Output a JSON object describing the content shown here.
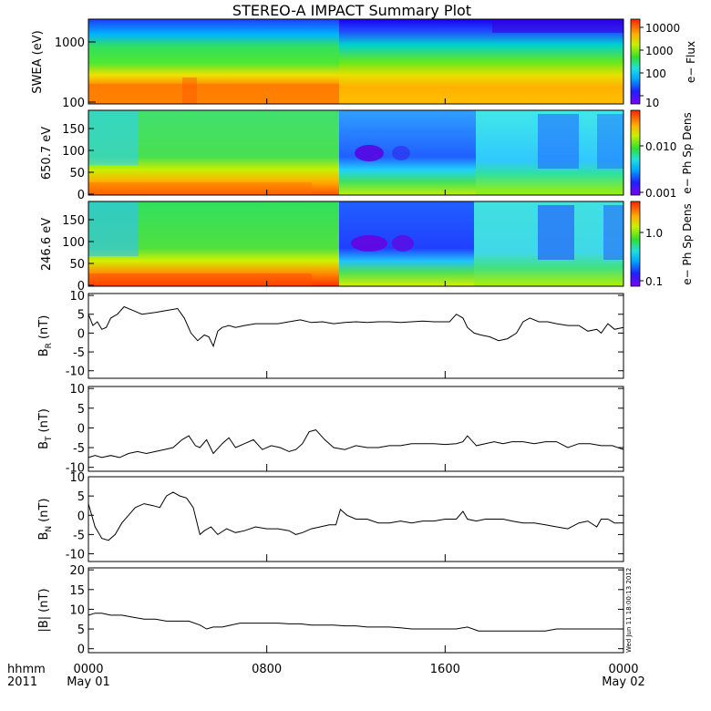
{
  "title": "STEREO-A IMPACT Summary Plot",
  "stamp": "Wed Jun 11 18:00:13 2012",
  "x_axis": {
    "corner_top": "hhmm",
    "corner_bottom": "2011",
    "ticks": [
      {
        "hhmm": "0000",
        "date": "May 01",
        "hours": 0
      },
      {
        "hhmm": "0800",
        "date": "",
        "hours": 8
      },
      {
        "hhmm": "1600",
        "date": "",
        "hours": 16
      },
      {
        "hhmm": "0000",
        "date": "May 02",
        "hours": 24
      }
    ],
    "range_hours": [
      0,
      24
    ]
  },
  "colors": {
    "background": "#ffffff",
    "line": "#000000"
  },
  "chart_data": [
    {
      "type": "heatmap",
      "ylabel": "SWEA (eV)",
      "yscale": "log",
      "ylim": [
        90,
        2000
      ],
      "yticks": [
        "1000",
        "100"
      ],
      "colorbar": {
        "label": "e− Flux",
        "scale": "log",
        "ticks": [
          "10000",
          "1000",
          "100",
          "10"
        ],
        "range": [
          5,
          20000
        ]
      }
    },
    {
      "type": "heatmap",
      "ylabel": "650.7 eV",
      "ylim": [
        -10,
        180
      ],
      "yticks": [
        "150",
        "100",
        "50",
        "0"
      ],
      "colorbar": {
        "label": "e− Ph Sp Dens",
        "scale": "log",
        "ticks": [
          "0.010",
          "0.001"
        ],
        "range": [
          0.0008,
          0.06
        ]
      }
    },
    {
      "type": "heatmap",
      "ylabel": "246.6 eV",
      "ylim": [
        -10,
        180
      ],
      "yticks": [
        "150",
        "100",
        "50",
        "0"
      ],
      "colorbar": {
        "label": "e− Ph Sp Dens",
        "scale": "log",
        "ticks": [
          "1.0",
          "0.1"
        ],
        "range": [
          0.07,
          5
        ]
      }
    },
    {
      "type": "line",
      "ylabel": "B",
      "ylabel_sub": "R",
      "ylabel_unit": "(nT)",
      "ylim": [
        -12,
        10.5
      ],
      "yticks": [
        "10",
        "5",
        "0",
        "-5",
        "-10"
      ],
      "x": [
        0,
        0.2,
        0.4,
        0.6,
        0.8,
        1.0,
        1.3,
        1.6,
        2.0,
        2.4,
        3.0,
        3.5,
        4.0,
        4.3,
        4.6,
        4.9,
        5.0,
        5.2,
        5.4,
        5.6,
        5.8,
        6.0,
        6.3,
        6.6,
        7.0,
        7.5,
        8.0,
        8.5,
        9.0,
        9.5,
        10.0,
        10.5,
        11.0,
        11.5,
        12.0,
        12.5,
        13.0,
        13.5,
        14.0,
        14.5,
        15.0,
        15.5,
        16.0,
        16.2,
        16.5,
        16.8,
        17.0,
        17.3,
        17.6,
        18.0,
        18.4,
        18.8,
        19.2,
        19.5,
        19.8,
        20.2,
        20.6,
        21.0,
        21.5,
        22.0,
        22.4,
        22.8,
        23.0,
        23.3,
        23.6,
        24.0
      ],
      "y": [
        5,
        2,
        3,
        1,
        1.5,
        4,
        5,
        7,
        6,
        5,
        5.5,
        6,
        6.5,
        4,
        0,
        -2,
        -1.5,
        -0.5,
        -1,
        -3.5,
        0.5,
        1.5,
        2,
        1.5,
        2,
        2.5,
        2.5,
        2.5,
        3,
        3.5,
        2.8,
        3,
        2.5,
        2.8,
        3,
        2.8,
        3,
        3,
        2.8,
        3,
        3.2,
        3,
        3,
        3,
        5,
        4,
        1.5,
        0,
        -0.5,
        -1,
        -2,
        -1.5,
        0,
        3,
        4,
        3,
        3,
        2.5,
        2,
        2,
        0.5,
        1,
        0,
        2.5,
        1,
        1.5
      ]
    },
    {
      "type": "line",
      "ylabel": "B",
      "ylabel_sub": "T",
      "ylabel_unit": "(nT)",
      "ylim": [
        -11,
        10.5
      ],
      "yticks": [
        "10",
        "5",
        "0",
        "-5",
        "-10"
      ],
      "x": [
        0,
        0.3,
        0.6,
        1.0,
        1.4,
        1.8,
        2.2,
        2.6,
        3.0,
        3.4,
        3.8,
        4.2,
        4.5,
        4.8,
        5.0,
        5.3,
        5.6,
        6.0,
        6.3,
        6.6,
        7.0,
        7.4,
        7.8,
        8.2,
        8.6,
        9.0,
        9.3,
        9.6,
        9.9,
        10.2,
        10.6,
        11.0,
        11.5,
        12.0,
        12.5,
        13.0,
        13.5,
        14.0,
        14.5,
        15.0,
        15.5,
        16.0,
        16.5,
        16.8,
        17.0,
        17.4,
        17.8,
        18.2,
        18.6,
        19.0,
        19.5,
        20.0,
        20.5,
        21.0,
        21.5,
        22.0,
        22.5,
        23.0,
        23.5,
        24.0
      ],
      "y": [
        -7.5,
        -7,
        -7.5,
        -7,
        -7.5,
        -6.5,
        -6,
        -6.5,
        -6,
        -5.5,
        -5,
        -3,
        -2,
        -4.5,
        -5,
        -3,
        -6.5,
        -4,
        -2.5,
        -5,
        -4,
        -3,
        -5.5,
        -4.5,
        -5,
        -6,
        -5.5,
        -4,
        -1,
        -0.5,
        -3,
        -5,
        -5.5,
        -4.5,
        -5,
        -5,
        -4.5,
        -4.5,
        -4,
        -4,
        -4,
        -4.2,
        -4,
        -3.5,
        -2,
        -4.5,
        -4,
        -3.5,
        -4,
        -3.5,
        -3.5,
        -4,
        -3.5,
        -3.5,
        -5,
        -4,
        -4,
        -4.5,
        -4.5,
        -5.5
      ]
    },
    {
      "type": "line",
      "ylabel": "B",
      "ylabel_sub": "N",
      "ylabel_unit": "(nT)",
      "ylim": [
        -12,
        10
      ],
      "yticks": [
        "10",
        "5",
        "0",
        "-5",
        "-10"
      ],
      "x": [
        0,
        0.3,
        0.6,
        0.9,
        1.2,
        1.5,
        1.8,
        2.1,
        2.5,
        2.9,
        3.2,
        3.5,
        3.8,
        4.1,
        4.4,
        4.7,
        5.0,
        5.2,
        5.5,
        5.8,
        6.2,
        6.6,
        7.0,
        7.5,
        8.0,
        8.5,
        9.0,
        9.3,
        9.6,
        10.0,
        10.4,
        10.8,
        11.1,
        11.3,
        11.6,
        12.0,
        12.5,
        13.0,
        13.5,
        14.0,
        14.5,
        15.0,
        15.5,
        16.0,
        16.5,
        16.8,
        17.0,
        17.4,
        17.8,
        18.2,
        18.6,
        19.0,
        19.5,
        20.0,
        20.5,
        21.0,
        21.5,
        22.0,
        22.4,
        22.8,
        23.0,
        23.3,
        23.6,
        24.0
      ],
      "y": [
        3,
        -3,
        -6,
        -6.5,
        -5,
        -2,
        0,
        2,
        3,
        2.5,
        2,
        5,
        6,
        5,
        4.5,
        2,
        -5,
        -4,
        -3,
        -5,
        -3.5,
        -4.5,
        -4,
        -3,
        -3.5,
        -3.5,
        -4,
        -5,
        -4.5,
        -3.5,
        -3,
        -2.5,
        -2.5,
        1.5,
        0,
        -1,
        -1,
        -2,
        -2,
        -1.5,
        -2,
        -1.5,
        -1.5,
        -1,
        -1,
        1,
        -1,
        -1.5,
        -1,
        -1,
        -1,
        -1.5,
        -2,
        -2,
        -2.5,
        -3,
        -3.5,
        -2,
        -1.5,
        -3,
        -1,
        -1,
        -2,
        -2
      ]
    },
    {
      "type": "line",
      "ylabel": "|B|",
      "ylabel_unit": "(nT)",
      "ylim": [
        -1,
        20.5
      ],
      "yticks": [
        "20",
        "15",
        "10",
        "5",
        "0"
      ],
      "x": [
        0,
        0.3,
        0.6,
        1.0,
        1.5,
        2.0,
        2.5,
        3.0,
        3.5,
        4.0,
        4.5,
        5.0,
        5.3,
        5.6,
        6.0,
        6.4,
        6.8,
        7.2,
        7.6,
        8.0,
        8.5,
        9.0,
        9.5,
        10.0,
        10.5,
        11.0,
        11.5,
        12.0,
        12.5,
        13.0,
        13.5,
        14.0,
        14.5,
        15.0,
        15.5,
        16.0,
        16.5,
        17.0,
        17.5,
        18.0,
        18.5,
        19.0,
        19.5,
        20.0,
        20.5,
        21.0,
        21.5,
        22.0,
        22.5,
        23.0,
        23.5,
        24.0
      ],
      "y": [
        8.5,
        9,
        9,
        8.5,
        8.5,
        8,
        7.5,
        7.5,
        7,
        7,
        7,
        6,
        5,
        5.5,
        5.5,
        6,
        6.5,
        6.5,
        6.5,
        6.5,
        6.5,
        6.3,
        6.3,
        6,
        6,
        6,
        5.8,
        5.8,
        5.5,
        5.5,
        5.5,
        5.3,
        5,
        5,
        5,
        5,
        5,
        5.5,
        4.5,
        4.5,
        4.5,
        4.5,
        4.5,
        4.5,
        4.5,
        5,
        5,
        5,
        5,
        5,
        5,
        5
      ]
    }
  ]
}
